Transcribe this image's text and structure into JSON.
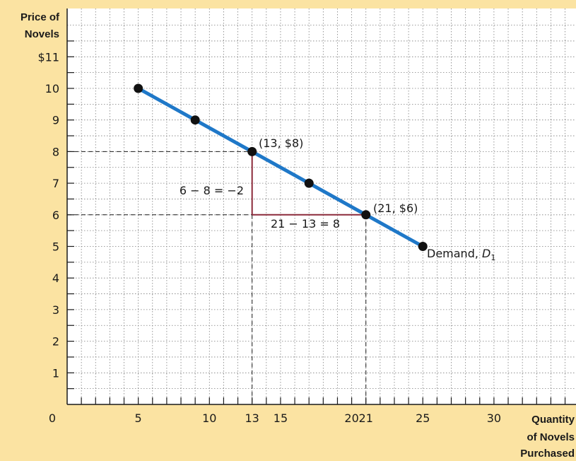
{
  "chart_data": {
    "type": "line",
    "xlabel_lines": [
      "Quantity",
      "of Novels",
      "Purchased"
    ],
    "ylabel_lines": [
      "Price of",
      "Novels"
    ],
    "xlim": [
      0,
      35
    ],
    "ylim": [
      0,
      12
    ],
    "x_ticks": [
      "0",
      "5",
      "10",
      "13",
      "15",
      "20",
      "21",
      "25",
      "30"
    ],
    "y_ticks": [
      "$11",
      "10",
      "9",
      "8",
      "7",
      "6",
      "5",
      "4",
      "3",
      "2",
      "1"
    ],
    "grid": true,
    "series": [
      {
        "name": "Demand, D1",
        "label": "Demand,",
        "label_italic": "D",
        "label_sub": "1",
        "color": "#1f78c8",
        "points": [
          {
            "x": 5,
            "y": 10
          },
          {
            "x": 9,
            "y": 9
          },
          {
            "x": 13,
            "y": 8
          },
          {
            "x": 17,
            "y": 7
          },
          {
            "x": 21,
            "y": 6
          },
          {
            "x": 25,
            "y": 5
          }
        ]
      }
    ],
    "annotations": {
      "point_a_label": "(13, $8)",
      "point_b_label": "(21, $6)",
      "rise_label": "6 − 8 = −2",
      "run_label": "21 − 13 = 8",
      "triangle_color": "#8b2a3a"
    }
  }
}
